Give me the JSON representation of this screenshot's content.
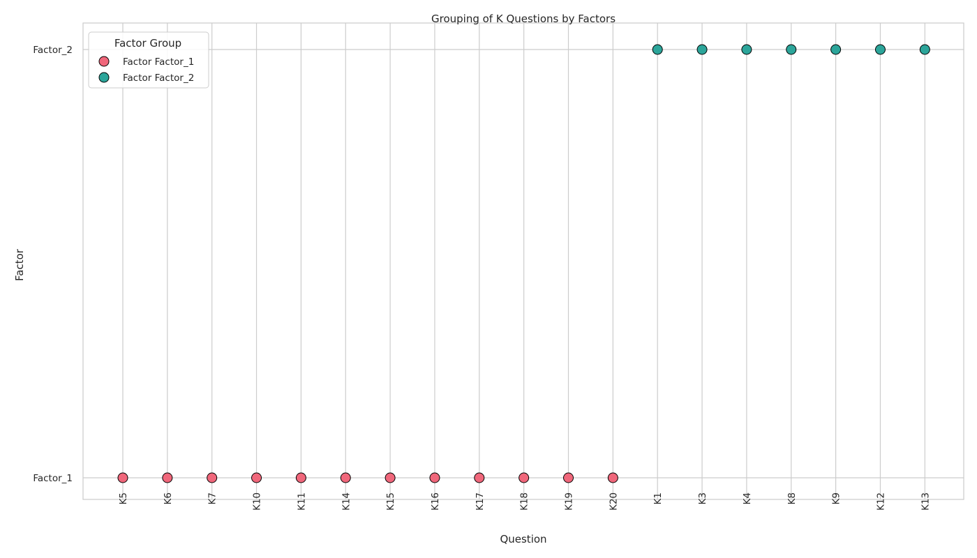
{
  "chart_data": {
    "type": "scatter",
    "title": "Grouping of K Questions by Factors",
    "xlabel": "Question",
    "ylabel": "Factor",
    "categories": [
      "K5",
      "K6",
      "K7",
      "K10",
      "K11",
      "K14",
      "K15",
      "K16",
      "K17",
      "K18",
      "K19",
      "K20",
      "K1",
      "K3",
      "K4",
      "K8",
      "K9",
      "K12",
      "K13"
    ],
    "y_categories": [
      "Factor_1",
      "Factor_2"
    ],
    "grid": true,
    "legend": {
      "title": "Factor Group",
      "placement": "top-left"
    },
    "series": [
      {
        "name": "Factor Factor_1",
        "color": "#f0677b",
        "points": [
          {
            "x": "K5",
            "y": "Factor_1"
          },
          {
            "x": "K6",
            "y": "Factor_1"
          },
          {
            "x": "K7",
            "y": "Factor_1"
          },
          {
            "x": "K10",
            "y": "Factor_1"
          },
          {
            "x": "K11",
            "y": "Factor_1"
          },
          {
            "x": "K14",
            "y": "Factor_1"
          },
          {
            "x": "K15",
            "y": "Factor_1"
          },
          {
            "x": "K16",
            "y": "Factor_1"
          },
          {
            "x": "K17",
            "y": "Factor_1"
          },
          {
            "x": "K18",
            "y": "Factor_1"
          },
          {
            "x": "K19",
            "y": "Factor_1"
          },
          {
            "x": "K20",
            "y": "Factor_1"
          }
        ]
      },
      {
        "name": "Factor Factor_2",
        "color": "#2ca59a",
        "points": [
          {
            "x": "K1",
            "y": "Factor_2"
          },
          {
            "x": "K3",
            "y": "Factor_2"
          },
          {
            "x": "K4",
            "y": "Factor_2"
          },
          {
            "x": "K8",
            "y": "Factor_2"
          },
          {
            "x": "K9",
            "y": "Factor_2"
          },
          {
            "x": "K12",
            "y": "Factor_2"
          },
          {
            "x": "K13",
            "y": "Factor_2"
          }
        ]
      }
    ]
  }
}
